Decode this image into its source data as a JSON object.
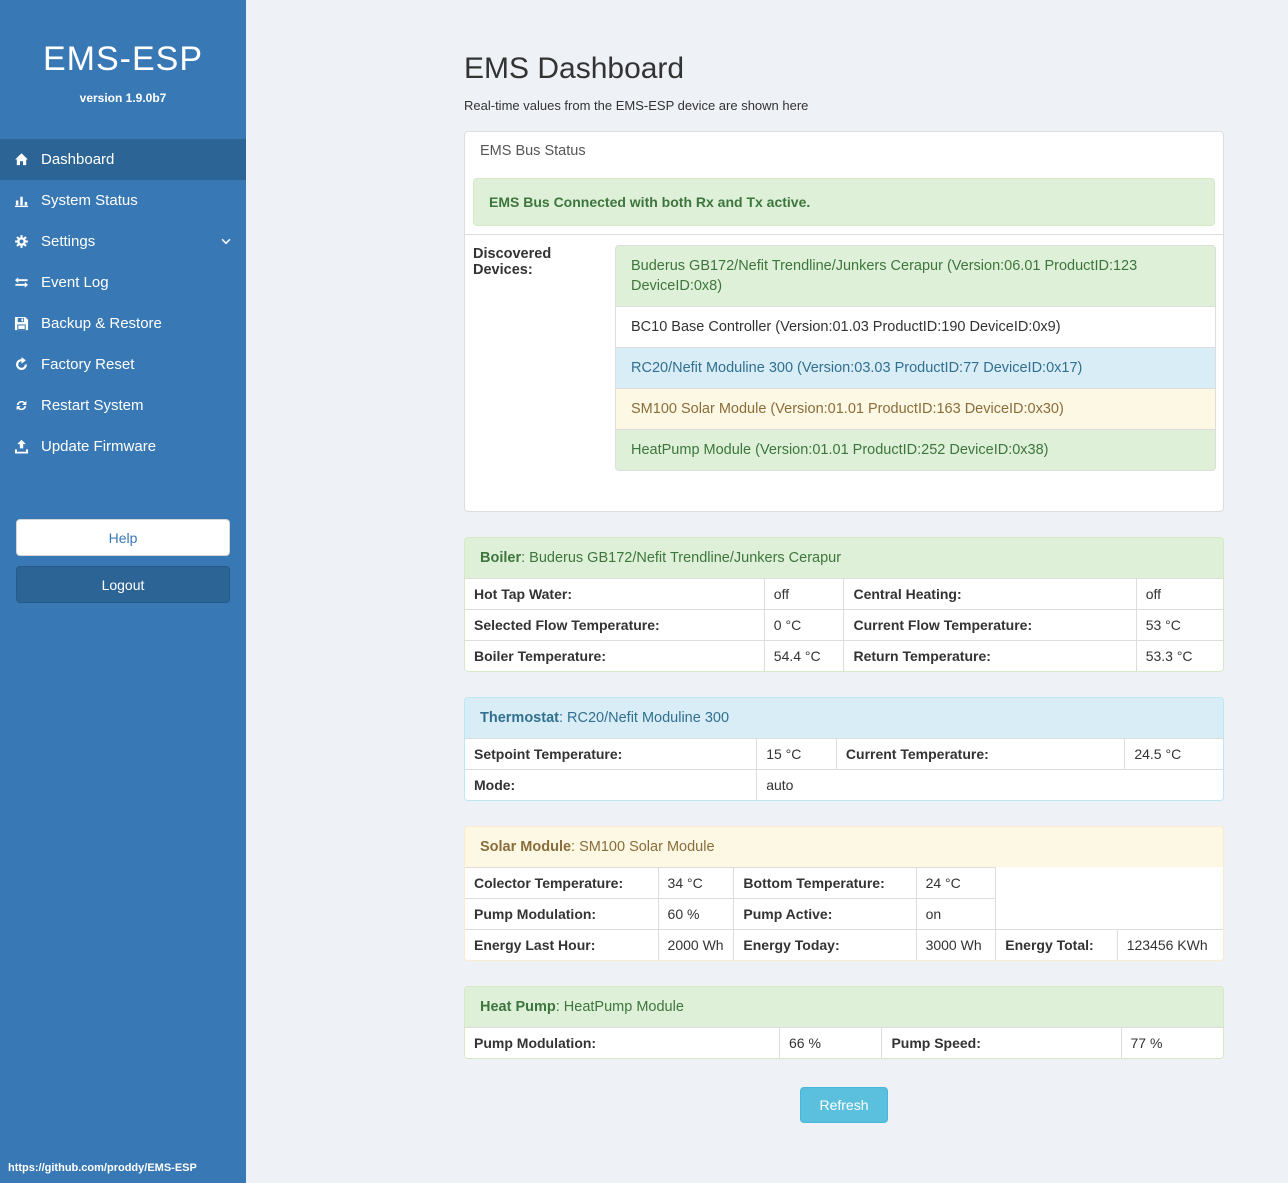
{
  "colors": {
    "sidebar": "#3878b4",
    "sidebar_active": "#2d6496",
    "success_bg": "#dff0d8",
    "success_text": "#3c763d",
    "info_bg": "#d9edf7",
    "info_text": "#31708f",
    "warning_bg": "#fcf8e3",
    "warning_text": "#8a6d3b",
    "refresh_button": "#5bc0de"
  },
  "sidebar": {
    "title": "EMS-ESP",
    "version": "version 1.9.0b7",
    "items": [
      {
        "label": "Dashboard",
        "icon": "home-icon",
        "active": true
      },
      {
        "label": "System Status",
        "icon": "system-status-icon"
      },
      {
        "label": "Settings",
        "icon": "gear-icon",
        "chevron": true
      },
      {
        "label": "Event Log",
        "icon": "event-log-icon"
      },
      {
        "label": "Backup & Restore",
        "icon": "backup-icon"
      },
      {
        "label": "Factory Reset",
        "icon": "factory-reset-icon"
      },
      {
        "label": "Restart System",
        "icon": "restart-icon"
      },
      {
        "label": "Update Firmware",
        "icon": "upload-icon"
      }
    ],
    "help_label": "Help",
    "logout_label": "Logout",
    "footer_link": "https://github.com/proddy/EMS-ESP"
  },
  "main": {
    "title": "EMS Dashboard",
    "subtitle": "Real-time values from the EMS-ESP device are shown here",
    "bus_status_panel": {
      "header": "EMS Bus Status",
      "alert": "EMS Bus Connected with both Rx and Tx active.",
      "discovered_label": "Discovered Devices:",
      "devices": [
        {
          "text": "Buderus GB172/Nefit Trendline/Junkers Cerapur (Version:06.01 ProductID:123 DeviceID:0x8)",
          "variant": "success"
        },
        {
          "text": "BC10 Base Controller (Version:01.03 ProductID:190 DeviceID:0x9)",
          "variant": "default"
        },
        {
          "text": "RC20/Nefit Moduline 300 (Version:03.03 ProductID:77 DeviceID:0x17)",
          "variant": "info"
        },
        {
          "text": "SM100 Solar Module (Version:01.01 ProductID:163 DeviceID:0x30)",
          "variant": "warning"
        },
        {
          "text": "HeatPump Module (Version:01.01 ProductID:252 DeviceID:0x38)",
          "variant": "success"
        }
      ]
    },
    "panels": [
      {
        "id": "boiler",
        "variant": "success",
        "title_bold": "Boiler",
        "title_rest": ": Buderus GB172/Nefit Trendline/Junkers Cerapur",
        "cols": [
          39.5,
          10.5,
          38.5,
          11.5
        ],
        "rows": [
          [
            {
              "t": "Hot Tap Water:",
              "b": true
            },
            {
              "t": "off"
            },
            {
              "t": "Central Heating:",
              "b": true
            },
            {
              "t": "off"
            }
          ],
          [
            {
              "t": "Selected Flow Temperature:",
              "b": true
            },
            {
              "t": "0 °C"
            },
            {
              "t": "Current Flow Temperature:",
              "b": true
            },
            {
              "t": "53 °C"
            }
          ],
          [
            {
              "t": "Boiler Temperature:",
              "b": true
            },
            {
              "t": "54.4 °C"
            },
            {
              "t": "Return Temperature:",
              "b": true
            },
            {
              "t": "53.3 °C"
            }
          ]
        ]
      },
      {
        "id": "thermostat",
        "variant": "info",
        "title_bold": "Thermostat",
        "title_rest": ": RC20/Nefit Moduline 300",
        "cols": [
          38.5,
          10.5,
          38,
          13
        ],
        "rows": [
          [
            {
              "t": "Setpoint Temperature:",
              "b": true
            },
            {
              "t": "15 °C"
            },
            {
              "t": "Current Temperature:",
              "b": true
            },
            {
              "t": "24.5 °C"
            }
          ],
          [
            {
              "t": "Mode:",
              "b": true
            },
            {
              "t": "auto",
              "span": 3
            }
          ]
        ]
      },
      {
        "id": "solar-module",
        "variant": "warning",
        "title_bold": "Solar Module",
        "title_rest": ": SM100 Solar Module",
        "cols": [
          25.5,
          10,
          24,
          10.5,
          16,
          14
        ],
        "rows": [
          [
            {
              "t": "Colector Temperature:",
              "b": true
            },
            {
              "t": "34 °C"
            },
            {
              "t": "Bottom Temperature:",
              "b": true
            },
            {
              "t": "24 °C"
            }
          ],
          [
            {
              "t": "Pump Modulation:",
              "b": true
            },
            {
              "t": "60 %"
            },
            {
              "t": "Pump Active:",
              "b": true
            },
            {
              "t": "on"
            }
          ],
          [
            {
              "t": "Energy Last Hour:",
              "b": true
            },
            {
              "t": "2000 Wh"
            },
            {
              "t": "Energy Today:",
              "b": true
            },
            {
              "t": "3000 Wh"
            },
            {
              "t": "Energy Total:",
              "b": true
            },
            {
              "t": "123456 KWh"
            }
          ]
        ]
      },
      {
        "id": "heat-pump",
        "variant": "success",
        "title_bold": "Heat Pump",
        "title_rest": ": HeatPump Module",
        "cols": [
          41.5,
          13.5,
          31.5,
          13.5
        ],
        "rows": [
          [
            {
              "t": "Pump Modulation:",
              "b": true
            },
            {
              "t": "66 %"
            },
            {
              "t": "Pump Speed:",
              "b": true
            },
            {
              "t": "77 %"
            }
          ]
        ]
      }
    ],
    "refresh_label": "Refresh"
  }
}
